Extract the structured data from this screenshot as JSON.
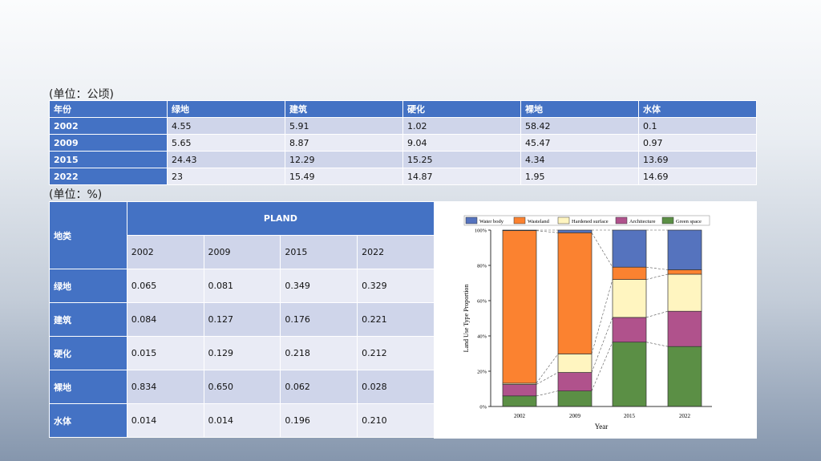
{
  "table1": {
    "unit": "(单位：公顷)",
    "headers": [
      "年份",
      "绿地",
      "建筑",
      "硬化",
      "裸地",
      "水体"
    ],
    "rows": [
      [
        "2002",
        "4.55",
        "5.91",
        "1.02",
        "58.42",
        "0.1"
      ],
      [
        "2009",
        "5.65",
        "8.87",
        "9.04",
        "45.47",
        "0.97"
      ],
      [
        "2015",
        "24.43",
        "12.29",
        "15.25",
        "4.34",
        "13.69"
      ],
      [
        "2022",
        "23",
        "15.49",
        "14.87",
        "1.95",
        "14.69"
      ]
    ]
  },
  "table2": {
    "unit": "(单位：%)",
    "corner": "地类",
    "group": "PLAND",
    "years": [
      "2002",
      "2009",
      "2015",
      "2022"
    ],
    "rows": [
      [
        "绿地",
        "0.065",
        "0.081",
        "0.349",
        "0.329"
      ],
      [
        "建筑",
        "0.084",
        "0.127",
        "0.176",
        "0.221"
      ],
      [
        "硬化",
        "0.015",
        "0.129",
        "0.218",
        "0.212"
      ],
      [
        "裸地",
        "0.834",
        "0.650",
        "0.062",
        "0.028"
      ],
      [
        "水体",
        "0.014",
        "0.014",
        "0.196",
        "0.210"
      ]
    ]
  },
  "chart_data": {
    "type": "bar",
    "stacked": true,
    "xlabel": "Year",
    "ylabel": "Land Use Type Proportion",
    "ylim": [
      0,
      100
    ],
    "yticks": [
      "0%",
      "20%",
      "40%",
      "60%",
      "80%",
      "100%"
    ],
    "categories": [
      "2002",
      "2009",
      "2015",
      "2022"
    ],
    "legend": "top",
    "series": [
      {
        "name": "Green space",
        "color": "#5b8f45",
        "values": [
          6,
          8.8,
          36.5,
          34
        ]
      },
      {
        "name": "Architecture",
        "color": "#b0528c",
        "values": [
          6.5,
          10.5,
          14,
          20
        ]
      },
      {
        "name": "Hardened surface",
        "color": "#fff5c0",
        "values": [
          0.7,
          10.5,
          21.5,
          21
        ]
      },
      {
        "name": "Wasteland",
        "color": "#fb8230",
        "values": [
          86.5,
          68.7,
          7,
          2.5
        ]
      },
      {
        "name": "Water body",
        "color": "#5573be",
        "values": [
          0.3,
          1.5,
          21,
          22.5
        ]
      }
    ]
  }
}
